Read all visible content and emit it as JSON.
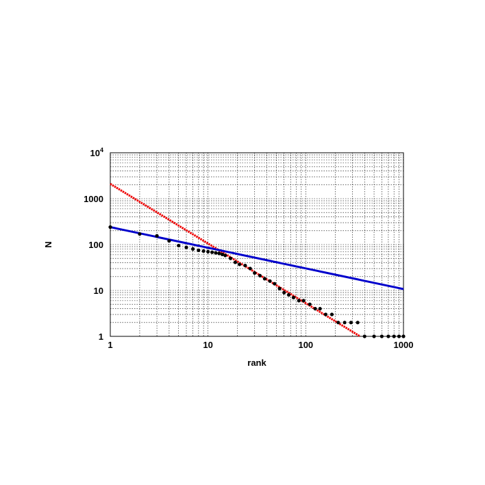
{
  "chart_data": {
    "type": "scatter",
    "title": "",
    "xlabel": "rank",
    "ylabel": "N",
    "x_scale": "log",
    "y_scale": "log",
    "xlim": [
      1,
      1000
    ],
    "ylim": [
      1,
      10000
    ],
    "grid": true,
    "x_ticks": [
      "1",
      "10",
      "100",
      "1000"
    ],
    "y_ticks": [
      {
        "base": "1",
        "exp": ""
      },
      {
        "base": "10",
        "exp": ""
      },
      {
        "base": "100",
        "exp": ""
      },
      {
        "base": "1000",
        "exp": ""
      },
      {
        "base": "10",
        "exp": "4"
      }
    ],
    "colors": {
      "data": "#000000",
      "fit_steep": "#ee0000",
      "fit_shallow": "#0000cc"
    },
    "observed": {
      "x": [
        1,
        2,
        3,
        4,
        5,
        6,
        7,
        8,
        9,
        10,
        11,
        12,
        13,
        14,
        15,
        17,
        19,
        21,
        24,
        27,
        30,
        34,
        38,
        43,
        48,
        54,
        60,
        67,
        75,
        85,
        95,
        110,
        125,
        140,
        160,
        185,
        215,
        250,
        290,
        340,
        400,
        500,
        600,
        700,
        800,
        900,
        1000
      ],
      "y": [
        240,
        170,
        155,
        120,
        95,
        87,
        80,
        75,
        72,
        70,
        68,
        66,
        64,
        61,
        58,
        50,
        41,
        37,
        35,
        30,
        24,
        21,
        18,
        16,
        14,
        11,
        9,
        8,
        7,
        6,
        6,
        5,
        4,
        4,
        3,
        3,
        2,
        2,
        2,
        2,
        1,
        1,
        1,
        1,
        1,
        1,
        1
      ]
    },
    "series": [
      {
        "kind": "power_law_fit",
        "amplitude": 2100,
        "exponent": -1.3
      },
      {
        "kind": "power_law_fit",
        "amplitude": 240,
        "exponent": -0.45
      }
    ]
  }
}
